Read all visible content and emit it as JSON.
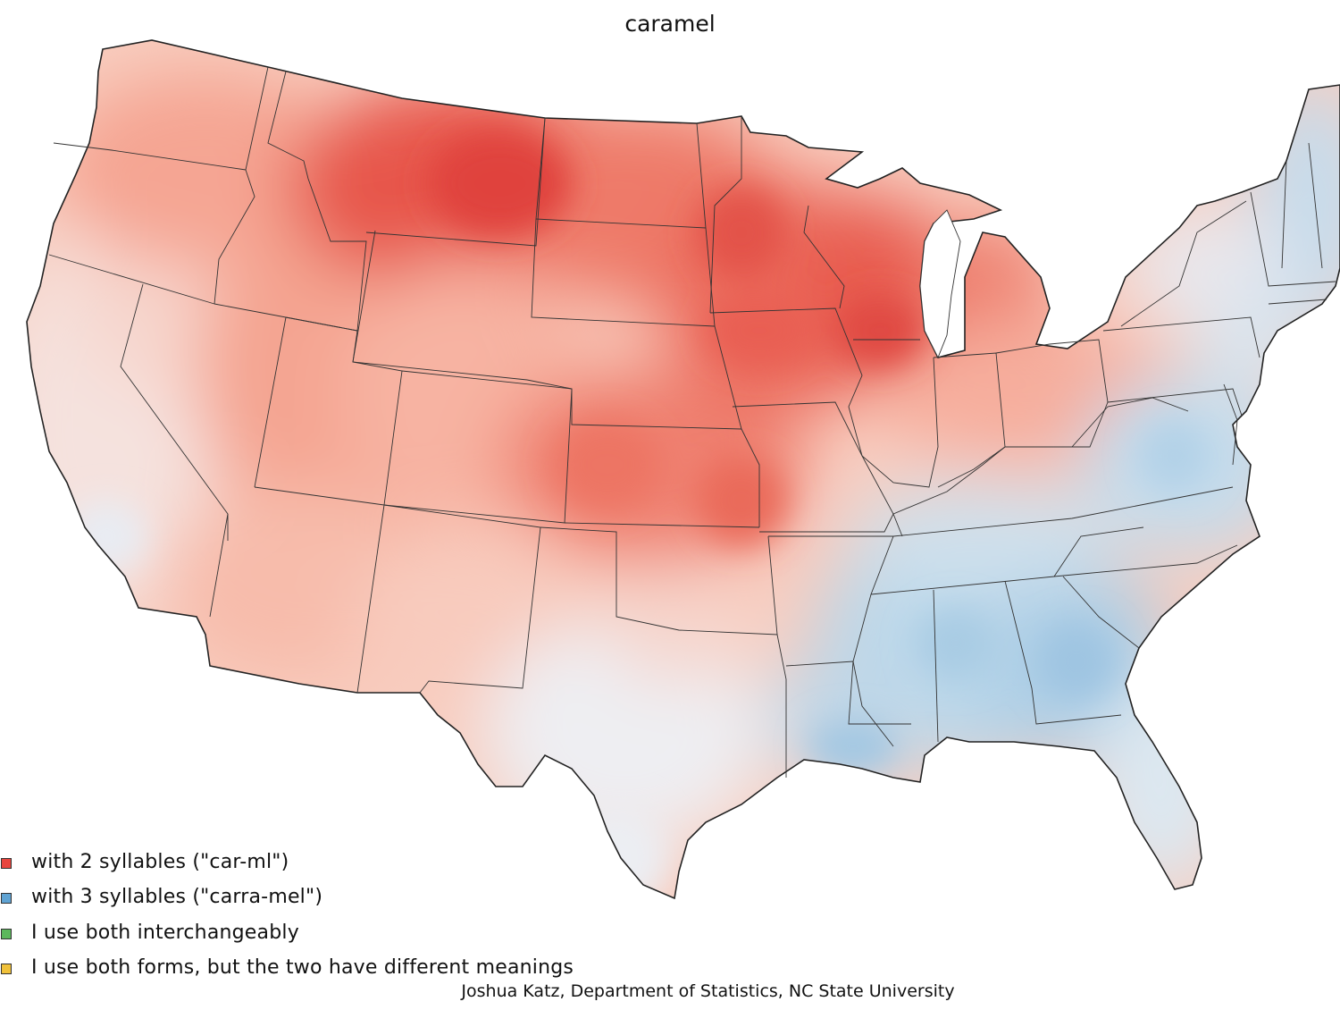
{
  "map": {
    "title": "caramel",
    "credit": "Joshua Katz, Department of Statistics, NC State University",
    "colors": {
      "two_syllables": "#e8463f",
      "three_syllables": "#5fa3d3",
      "interchangeable": "#5cb85c",
      "different_meanings": "#f0c13a",
      "neutral": "#f4f1f2",
      "state_border": "#333333"
    }
  },
  "legend": {
    "items": [
      {
        "label": "with 2 syllables (\"car-ml\")",
        "color": "#e8463f"
      },
      {
        "label": "with 3 syllables (\"carra-mel\")",
        "color": "#5fa3d3"
      },
      {
        "label": "I use both interchangeably",
        "color": "#5cb85c"
      },
      {
        "label": "I use both forms, but the two have different meanings",
        "color": "#f0c13a"
      }
    ]
  }
}
